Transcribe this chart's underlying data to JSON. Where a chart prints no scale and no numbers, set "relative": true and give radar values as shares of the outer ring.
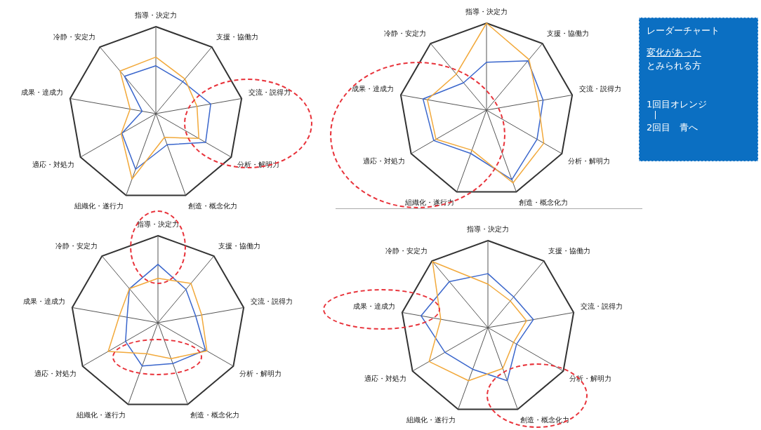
{
  "chart_data": [
    {
      "type": "radar",
      "categories": [
        "指導・決定力",
        "支援・協働力",
        "交流・説得力",
        "分析・解明力",
        "創造・概念化力",
        "組織化・遂行力",
        "適応・対処力",
        "成果・達成力",
        "冷静・安定力"
      ],
      "relative": true,
      "grid": true,
      "series": [
        {
          "color": "#f2a93b",
          "values": [
            0.65,
            0.52,
            0.48,
            0.57,
            0.29,
            0.8,
            0.46,
            0.3,
            0.64
          ]
        },
        {
          "color": "#3a66cc",
          "values": [
            0.55,
            0.48,
            0.64,
            0.66,
            0.38,
            0.68,
            0.45,
            0.16,
            0.56
          ]
        }
      ]
    },
    {
      "type": "radar",
      "categories": [
        "指導・決定力",
        "支援・協働力",
        "交流・説得力",
        "分析・解明力",
        "創造・概念化力",
        "組織化・遂行力",
        "適応・対処力",
        "成果・達成力",
        "冷静・安定力"
      ],
      "relative": true,
      "grid": true,
      "series": [
        {
          "color": "#f2a93b",
          "values": [
            1,
            0.76,
            0.6,
            0.76,
            0.89,
            0.49,
            0.67,
            0.69,
            0.54
          ]
        },
        {
          "color": "#3a66cc",
          "values": [
            0.55,
            0.74,
            0.66,
            0.67,
            0.85,
            0.53,
            0.7,
            0.74,
            0.41
          ]
        }
      ]
    },
    {
      "type": "radar",
      "categories": [
        "指導・決定力",
        "支援・協働力",
        "交流・説得力",
        "分析・解明力",
        "創造・概念化力",
        "組織化・遂行力",
        "適応・対処力",
        "成果・達成力",
        "冷静・安定力"
      ],
      "relative": true,
      "grid": true,
      "series": [
        {
          "color": "#f2a93b",
          "values": [
            0.51,
            0.59,
            0.51,
            0.65,
            0.44,
            0.38,
            0.66,
            0.45,
            0.51
          ]
        },
        {
          "color": "#3a66cc",
          "values": [
            0.67,
            0.5,
            0.44,
            0.63,
            0.5,
            0.53,
            0.43,
            0.36,
            0.51
          ]
        }
      ]
    },
    {
      "type": "radar",
      "categories": [
        "指導・決定力",
        "支援・協働力",
        "交流・説得力",
        "分析・解明力",
        "創造・概念化力",
        "組織化・遂行力",
        "適応・対処力",
        "成果・達成力",
        "冷静・安定力"
      ],
      "relative": true,
      "grid": true,
      "series": [
        {
          "color": "#f2a93b",
          "values": [
            0.5,
            0.4,
            0.45,
            0.34,
            0.5,
            0.65,
            0.78,
            0.55,
            0.99
          ]
        },
        {
          "color": "#3a66cc",
          "values": [
            0.62,
            0.46,
            0.53,
            0.38,
            0.65,
            0.51,
            0.57,
            0.78,
            0.69
          ]
        }
      ]
    },
    {
      "type": "other",
      "title": "レーダーチャート",
      "annotations": [
        "変化があった",
        "とみられる方",
        "1回目オレンジ",
        "2回目　青へ"
      ]
    }
  ]
}
